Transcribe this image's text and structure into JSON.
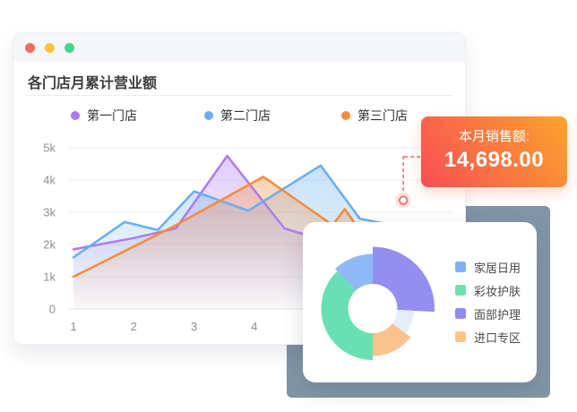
{
  "window": {
    "title": "各门店月累计营业额"
  },
  "traffic_lights": {
    "red": "#f8695e",
    "yellow": "#fbc63e",
    "green": "#47d492"
  },
  "badge": {
    "label": "本月销售额:",
    "value": "14,698.00",
    "gradient_from": "#f84e55",
    "gradient_to": "#fca32c"
  },
  "chart_data": [
    {
      "type": "line",
      "title": "各门店月累计营业额",
      "x_ticks": [
        "1",
        "2",
        "3",
        "4"
      ],
      "y_ticks": [
        "0",
        "1k",
        "2k",
        "3k",
        "4k",
        "5k"
      ],
      "ylim": [
        0,
        5000
      ],
      "grid": true,
      "legend_position": "top",
      "series": [
        {
          "name": "第一门店",
          "color": "#ab7cf0",
          "points": [
            [
              1,
              1850
            ],
            [
              2,
              2200
            ],
            [
              2.7,
              2500
            ],
            [
              3.55,
              4750
            ],
            [
              4.5,
              2500
            ],
            [
              4.85,
              2300
            ],
            [
              5.2,
              2100
            ]
          ]
        },
        {
          "name": "第二门店",
          "color": "#68aef2",
          "points": [
            [
              1,
              1600
            ],
            [
              1.85,
              2700
            ],
            [
              2.4,
              2450
            ],
            [
              3,
              3650
            ],
            [
              3.9,
              3050
            ],
            [
              5.1,
              4450
            ],
            [
              5.75,
              2800
            ],
            [
              6.3,
              2600
            ]
          ]
        },
        {
          "name": "第三门店",
          "color": "#f78b38",
          "points": [
            [
              1,
              1000
            ],
            [
              2.6,
              2500
            ],
            [
              4.15,
              4100
            ],
            [
              5.3,
              2600
            ],
            [
              5.5,
              3100
            ],
            [
              5.8,
              2300
            ]
          ]
        }
      ],
      "marker": {
        "x": 6.47,
        "value": 3370,
        "color": "#f2605f"
      }
    },
    {
      "type": "pie",
      "inner_radius": 27.5,
      "slices": [
        {
          "name": "家居日用",
          "color": "#8fb8f5",
          "legend_color": "#7fb0f2",
          "start": 316.5,
          "end": 360,
          "radius": 61
        },
        {
          "name": "彩妆护肤",
          "color": "#68e0b4",
          "legend_color": "#6ee0b0",
          "start": 180,
          "end": 316.5,
          "radius": 57.5
        },
        {
          "name": "面部护理",
          "color": "#938ef0",
          "legend_color": "#8f8cee",
          "start": 0,
          "end": 93,
          "radius": 69
        },
        {
          "name": "进口专区",
          "color": "#fac38d",
          "legend_color": "#f8c687",
          "start": 127,
          "end": 180,
          "radius": 53
        },
        {
          "name": "",
          "color": "#e4eefb",
          "start": 93,
          "end": 127,
          "radius": 46
        }
      ]
    }
  ]
}
